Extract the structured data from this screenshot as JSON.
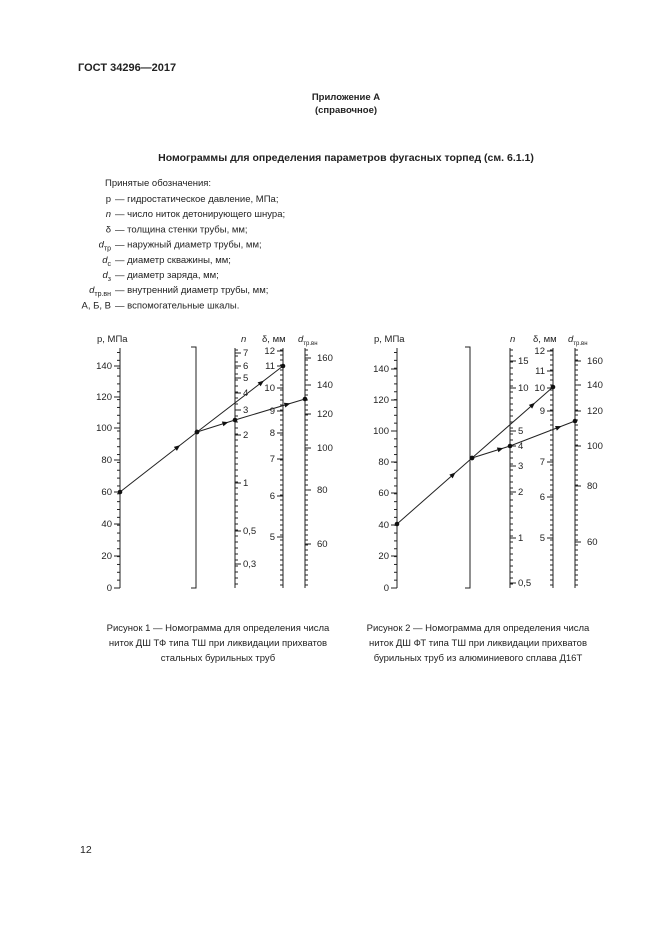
{
  "header": "ГОСТ 34296—2017",
  "appendix": {
    "title": "Приложение А",
    "subtitle": "(справочное)"
  },
  "title": "Номограммы для определения параметров фугасных торпед (см. 6.1.1)",
  "legend": {
    "heading": "Принятые обозначения:",
    "items": [
      {
        "symbol": "р",
        "text": "— гидростатическое давление, МПа;"
      },
      {
        "symbol": "n",
        "text": "— число ниток детонирующего шнура;"
      },
      {
        "symbol": "δ",
        "text": "— толщина стенки трубы, мм;"
      },
      {
        "symbol": "d",
        "sub": "тр",
        "text": "— наружный диаметр трубы, мм;"
      },
      {
        "symbol": "d",
        "sub": "с",
        "text": "— диаметр скважины, мм;"
      },
      {
        "symbol": "d",
        "sub": "з",
        "text": "— диаметр заряда, мм;"
      },
      {
        "symbol": "d",
        "sub": "тр.вн",
        "text": "— внутренний диаметр трубы, мм;"
      },
      {
        "symbol": "А, Б, В",
        "text": "— вспомогательные шкалы."
      }
    ]
  },
  "figures": [
    {
      "p": {
        "label": "р, МПа",
        "ticks": [
          "140",
          "120",
          "100",
          "80",
          "60",
          "40",
          "20",
          "0"
        ]
      },
      "n": {
        "label": "n",
        "ticks": [
          "7",
          "6",
          "5",
          "4",
          "3",
          "2",
          "1",
          "0,5",
          "0,3"
        ]
      },
      "delta": {
        "label": "δ, мм",
        "ticks": [
          "12",
          "11",
          "10",
          "9",
          "8",
          "7",
          "6",
          "5"
        ]
      },
      "d": {
        "label": "d",
        "sub": "тр.вн",
        "ticks": [
          "160",
          "140",
          "120",
          "100",
          "80",
          "60"
        ]
      },
      "caption": [
        "Рисунок 1 — Номограмма для определения числа",
        "ниток ДШ ТФ типа ТШ при ликвидации прихватов",
        "стальных бурильных труб"
      ]
    },
    {
      "p": {
        "label": "р, МПа",
        "ticks": [
          "140",
          "120",
          "100",
          "80",
          "60",
          "40",
          "20",
          "0"
        ]
      },
      "n": {
        "label": "n",
        "ticks": [
          "15",
          "10",
          "5",
          "4",
          "3",
          "2",
          "1",
          "0,5"
        ]
      },
      "delta": {
        "label": "δ, мм",
        "ticks": [
          "12",
          "11",
          "10",
          "9",
          "7",
          "6",
          "5"
        ]
      },
      "d": {
        "label": "d",
        "sub": "тр.вн",
        "ticks": [
          "160",
          "140",
          "120",
          "100",
          "80",
          "60"
        ]
      },
      "caption": [
        "Рисунок 2 — Номограмма для определения числа",
        "ниток ДШ ФТ типа ТШ при ликвидации прихватов",
        "бурильных труб из алюминиевого сплава Д16Т"
      ]
    }
  ],
  "page_number": "12"
}
